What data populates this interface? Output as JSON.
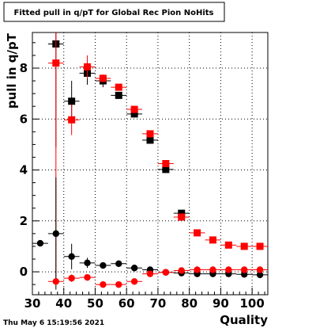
{
  "chart_data": {
    "type": "scatter",
    "title": "Fitted pull in q/pT for Global Rec Pion NoHits",
    "xlabel": "Quality",
    "ylabel": "pull in q/pT",
    "xlim": [
      30,
      105
    ],
    "ylim": [
      -0.9,
      9.4
    ],
    "xticks": [
      30,
      40,
      50,
      60,
      70,
      80,
      90,
      100
    ],
    "yticks": [
      0,
      2,
      4,
      6,
      8
    ],
    "grid": true,
    "timestamp": "Thu May  6 15:19:56 2021",
    "series": [
      {
        "color": "#000000",
        "marker": "square",
        "points": [
          {
            "x": 37.5,
            "y": 8.95,
            "yerr": 4.05
          },
          {
            "x": 42.5,
            "y": 6.7,
            "yerr": 0.8
          },
          {
            "x": 47.5,
            "y": 7.8,
            "yerr": 0.45
          },
          {
            "x": 52.5,
            "y": 7.5,
            "yerr": 0.25
          },
          {
            "x": 57.5,
            "y": 6.93,
            "yerr": 0.12
          },
          {
            "x": 62.5,
            "y": 6.2,
            "yerr": 0.08
          },
          {
            "x": 67.5,
            "y": 5.17,
            "yerr": 0.07
          },
          {
            "x": 72.5,
            "y": 4.02,
            "yerr": 0.06
          },
          {
            "x": 77.5,
            "y": 2.3,
            "yerr": 0.05
          }
        ]
      },
      {
        "color": "#ff0000",
        "marker": "square",
        "points": [
          {
            "x": 37.5,
            "y": 8.2,
            "yerr": 8.65
          },
          {
            "x": 42.5,
            "y": 5.97,
            "yerr": 0.6
          },
          {
            "x": 47.5,
            "y": 8.05,
            "yerr": 0.45
          },
          {
            "x": 52.5,
            "y": 7.6,
            "yerr": 0.15
          },
          {
            "x": 57.5,
            "y": 7.25,
            "yerr": 0.1
          },
          {
            "x": 62.5,
            "y": 6.38,
            "yerr": 0.08
          },
          {
            "x": 67.5,
            "y": 5.42,
            "yerr": 0.06
          },
          {
            "x": 72.5,
            "y": 4.25,
            "yerr": 0.05
          },
          {
            "x": 77.5,
            "y": 2.15,
            "yerr": 0.05
          },
          {
            "x": 82.5,
            "y": 1.53,
            "yerr": 0.04
          },
          {
            "x": 87.5,
            "y": 1.25,
            "yerr": 0.04
          },
          {
            "x": 92.5,
            "y": 1.05,
            "yerr": 0.04
          },
          {
            "x": 97.5,
            "y": 1.0,
            "yerr": 0.04
          },
          {
            "x": 102.5,
            "y": 1.0,
            "yerr": 0.04
          }
        ]
      },
      {
        "color": "#000000",
        "marker": "circle",
        "points": [
          {
            "x": 32.5,
            "y": 1.12,
            "yerr": 0.0
          },
          {
            "x": 37.5,
            "y": 1.5,
            "yerr": 2.2
          },
          {
            "x": 42.5,
            "y": 0.6,
            "yerr": 0.5
          },
          {
            "x": 47.5,
            "y": 0.35,
            "yerr": 0.2
          },
          {
            "x": 52.5,
            "y": 0.25,
            "yerr": 0.1
          },
          {
            "x": 57.5,
            "y": 0.32,
            "yerr": 0.06
          },
          {
            "x": 62.5,
            "y": 0.15,
            "yerr": 0.05
          },
          {
            "x": 67.5,
            "y": 0.08,
            "yerr": 0.04
          },
          {
            "x": 72.5,
            "y": -0.02,
            "yerr": 0.03
          },
          {
            "x": 77.5,
            "y": -0.05,
            "yerr": 0.03
          },
          {
            "x": 82.5,
            "y": -0.08,
            "yerr": 0.03
          },
          {
            "x": 87.5,
            "y": -0.08,
            "yerr": 0.03
          },
          {
            "x": 92.5,
            "y": -0.08,
            "yerr": 0.03
          },
          {
            "x": 97.5,
            "y": -0.1,
            "yerr": 0.03
          },
          {
            "x": 102.5,
            "y": -0.12,
            "yerr": 0.03
          }
        ]
      },
      {
        "color": "#ff0000",
        "marker": "circle",
        "points": [
          {
            "x": 37.5,
            "y": -0.38,
            "yerr": 0.1
          },
          {
            "x": 42.5,
            "y": -0.25,
            "yerr": 0.15
          },
          {
            "x": 47.5,
            "y": -0.22,
            "yerr": 0.12
          },
          {
            "x": 52.5,
            "y": -0.5,
            "yerr": 0.1
          },
          {
            "x": 57.5,
            "y": -0.5,
            "yerr": 0.07
          },
          {
            "x": 62.5,
            "y": -0.38,
            "yerr": 0.05
          },
          {
            "x": 67.5,
            "y": -0.08,
            "yerr": 0.04
          },
          {
            "x": 72.5,
            "y": -0.02,
            "yerr": 0.03
          },
          {
            "x": 77.5,
            "y": 0.05,
            "yerr": 0.03
          },
          {
            "x": 82.5,
            "y": 0.08,
            "yerr": 0.03
          },
          {
            "x": 87.5,
            "y": 0.08,
            "yerr": 0.03
          },
          {
            "x": 92.5,
            "y": 0.08,
            "yerr": 0.03
          },
          {
            "x": 97.5,
            "y": 0.08,
            "yerr": 0.03
          },
          {
            "x": 102.5,
            "y": 0.08,
            "yerr": 0.03
          }
        ]
      }
    ]
  }
}
